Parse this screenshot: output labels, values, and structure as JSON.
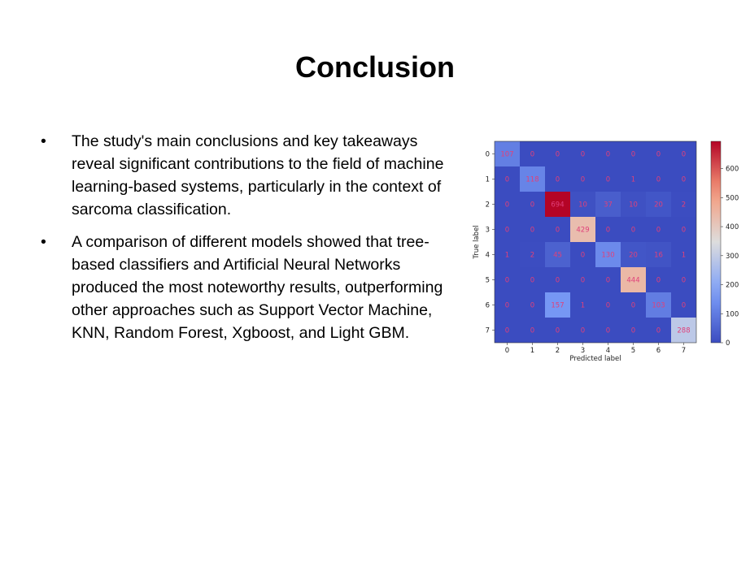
{
  "title": "Conclusion",
  "bullet_glyph": "•",
  "bullets": [
    "The study's main conclusions and key takeaways reveal significant contributions to the field of machine learning-based systems, particularly in the context of sarcoma classification.",
    "A comparison of different models showed that tree-based classifiers and Artificial Neural Networks produced the most noteworthy results, outperforming other approaches such as Support Vector Machine, KNN, Random Forest, Xgboost, and Light GBM."
  ],
  "chart_data": {
    "type": "heatmap",
    "xlabel": "Predicted label",
    "ylabel": "True label",
    "x_ticks": [
      "0",
      "1",
      "2",
      "3",
      "4",
      "5",
      "6",
      "7"
    ],
    "y_ticks": [
      "0",
      "1",
      "2",
      "3",
      "4",
      "5",
      "6",
      "7"
    ],
    "matrix": [
      [
        107,
        0,
        0,
        0,
        0,
        0,
        0,
        0
      ],
      [
        0,
        118,
        0,
        0,
        0,
        1,
        0,
        0
      ],
      [
        0,
        0,
        694,
        10,
        37,
        10,
        20,
        2
      ],
      [
        0,
        0,
        0,
        429,
        0,
        0,
        0,
        0
      ],
      [
        1,
        2,
        45,
        0,
        130,
        20,
        16,
        1
      ],
      [
        0,
        0,
        0,
        0,
        0,
        444,
        0,
        0
      ],
      [
        0,
        0,
        157,
        1,
        0,
        0,
        103,
        0
      ],
      [
        0,
        0,
        0,
        0,
        0,
        0,
        0,
        288
      ]
    ],
    "colorbar_ticks": [
      0,
      100,
      200,
      300,
      400,
      500,
      600
    ],
    "color_range": [
      0,
      694
    ],
    "colormap": "coolwarm",
    "text_color": "#e0407a"
  }
}
